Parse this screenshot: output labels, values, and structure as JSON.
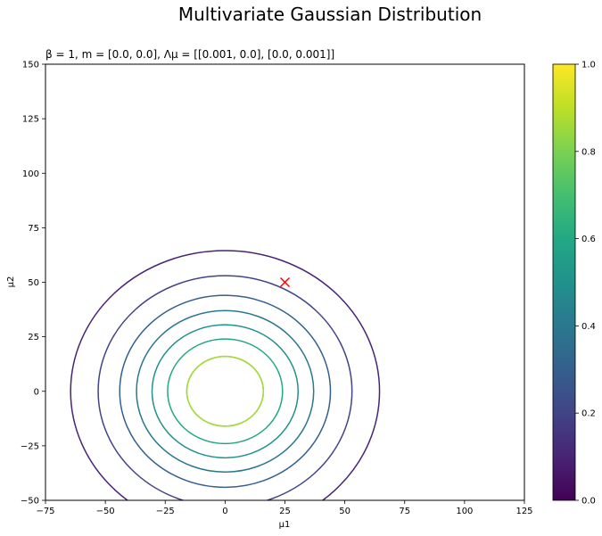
{
  "figure": {
    "title": "Multivariate Gaussian Distribution"
  },
  "chart_data": {
    "type": "contour",
    "subtitle": "β = 1, m = [0.0, 0.0], Λμ = [[0.001, 0.0], [0.0, 0.001]]",
    "xlabel": "μ1",
    "ylabel": "μ2",
    "xlim": [
      -75,
      125
    ],
    "ylim": [
      -50,
      150
    ],
    "xticks": [
      -75,
      -50,
      -25,
      0,
      25,
      50,
      75,
      100,
      125
    ],
    "yticks": [
      -50,
      -25,
      0,
      25,
      50,
      75,
      100,
      125,
      150
    ],
    "grid": false,
    "contours": [
      {
        "level": 0.1,
        "radius": 64.5,
        "color": "#482475"
      },
      {
        "level": 0.2,
        "radius": 53.0,
        "color": "#414487"
      },
      {
        "level": 0.3,
        "radius": 44.0,
        "color": "#355f8d"
      },
      {
        "level": 0.4,
        "radius": 37.0,
        "color": "#2a788e"
      },
      {
        "level": 0.5,
        "radius": 30.5,
        "color": "#21918c"
      },
      {
        "level": 0.6,
        "radius": 24.0,
        "color": "#22a884"
      },
      {
        "level": 0.7,
        "radius": 16.0,
        "color": "#7ad151"
      },
      {
        "level": 0.8,
        "radius": 16.0,
        "color": "#a5db36"
      }
    ],
    "marker": {
      "x": 25,
      "y": 50,
      "symbol": "x",
      "color": "#ff0000"
    },
    "colorbar": {
      "min": 0.0,
      "max": 1.0,
      "ticks": [
        "0.0",
        "0.2",
        "0.4",
        "0.6",
        "0.8",
        "1.0"
      ],
      "colormap": "viridis"
    }
  }
}
